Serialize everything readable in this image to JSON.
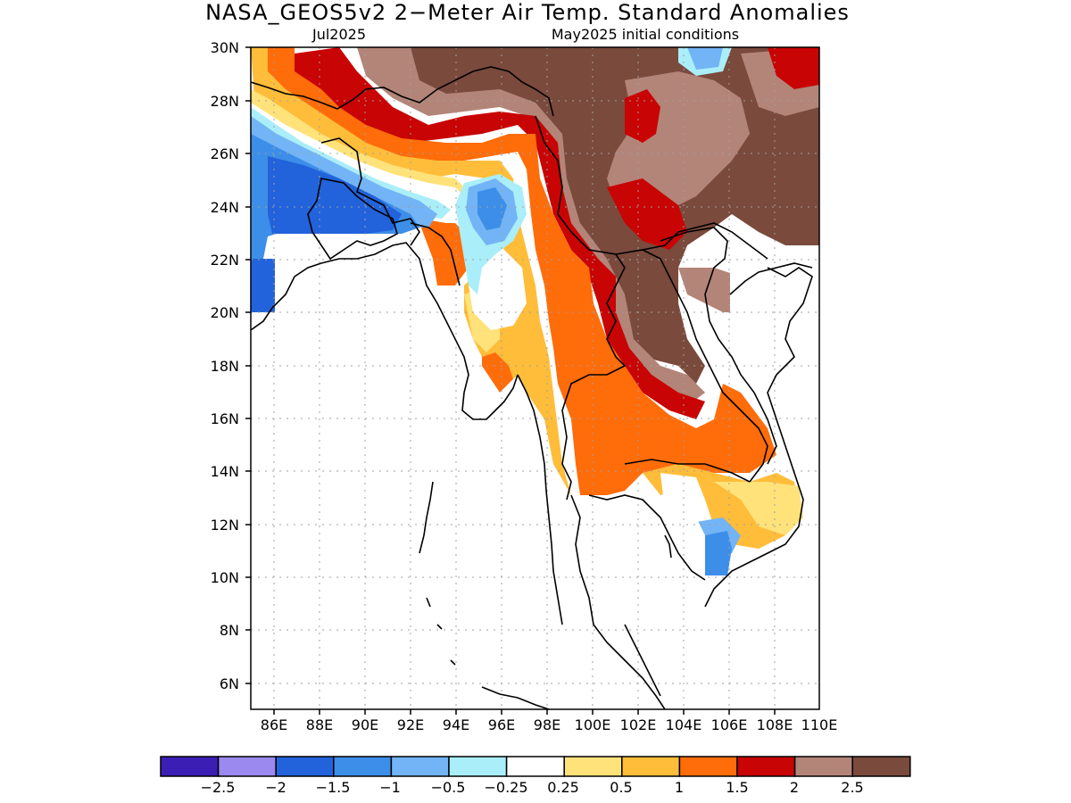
{
  "title": "NASA_GEOS5v2 2−Meter Air Temp. Standard Anomalies",
  "subtitle_left": "Jul2025",
  "subtitle_right": "May2025 initial conditions",
  "lat_labels": [
    "30N",
    "28N",
    "26N",
    "24N",
    "22N",
    "20N",
    "18N",
    "16N",
    "14N",
    "12N",
    "10N",
    "8N",
    "6N"
  ],
  "lon_labels": [
    "86E",
    "88E",
    "90E",
    "92E",
    "94E",
    "96E",
    "98E",
    "100E",
    "102E",
    "104E",
    "106E",
    "108E",
    "110E"
  ],
  "colorbar": {
    "colors": [
      "#3b1fb4",
      "#9b89f0",
      "#2263db",
      "#3c8ee8",
      "#72b4f5",
      "#aaeefa",
      "#ffffff",
      "#ffe27a",
      "#ffbd3a",
      "#ff6c0a",
      "#c80404",
      "#b38478",
      "#7a4a3c"
    ],
    "labels": [
      "−2.5",
      "−2",
      "−1.5",
      "−1",
      "−0.5",
      "−0.25",
      "0.25",
      "0.5",
      "1",
      "1.5",
      "2",
      "2.5"
    ]
  },
  "colors": {
    "grid": "#a0a0a0",
    "coast": "#000000"
  }
}
